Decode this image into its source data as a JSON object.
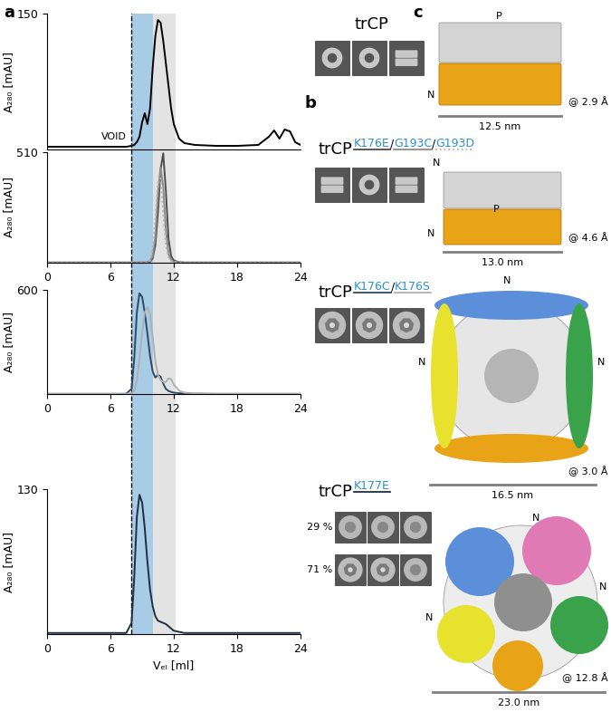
{
  "chart_data": [
    {
      "type": "line",
      "ylabel": "A₂₈₀ [mAU]",
      "xlim": [
        0,
        24
      ],
      "ylim": [
        0,
        150
      ],
      "yticks": [
        150
      ],
      "tick_labels": "y",
      "x": [
        0,
        2,
        4,
        6,
        7,
        7.5,
        8,
        8.25,
        8.5,
        8.75,
        9,
        9.25,
        9.5,
        9.75,
        10,
        10.25,
        10.5,
        10.75,
        11,
        11.25,
        11.5,
        11.75,
        12,
        12.5,
        13,
        14,
        16,
        18,
        20,
        21,
        21.5,
        22,
        22.5,
        23,
        23.5,
        24
      ],
      "series": [
        {
          "name": "trCP",
          "color": "#000000",
          "line_style": "solid",
          "values": [
            3,
            3,
            3,
            3,
            3,
            3,
            4,
            5,
            8,
            14,
            30,
            40,
            28,
            45,
            90,
            125,
            143,
            140,
            120,
            95,
            70,
            45,
            28,
            12,
            7,
            5,
            4,
            4,
            5,
            14,
            21,
            12,
            22,
            20,
            8,
            5
          ]
        }
      ]
    },
    {
      "type": "line",
      "ylabel": "A₂₈₀ [mAU]",
      "xlim": [
        0,
        24
      ],
      "ylim": [
        0,
        510
      ],
      "xticks": [
        0,
        6,
        12,
        18,
        24
      ],
      "yticks": [
        510
      ],
      "x": [
        0,
        2,
        4,
        6,
        7,
        7.5,
        8,
        8.25,
        8.5,
        8.75,
        9,
        9.25,
        9.5,
        9.75,
        10,
        10.25,
        10.5,
        10.75,
        11,
        11.25,
        11.5,
        11.75,
        12,
        12.5,
        13,
        14,
        16,
        18,
        20,
        21,
        21.5,
        22,
        22.5,
        23,
        23.5,
        24
      ],
      "series": [
        {
          "name": "K176E",
          "color": "#4d4d4d",
          "line_style": "solid",
          "values": [
            1,
            1,
            1,
            1,
            1,
            1,
            1,
            1,
            1,
            1,
            1,
            1,
            2,
            5,
            20,
            80,
            230,
            430,
            505,
            330,
            110,
            30,
            10,
            3,
            1,
            1,
            1,
            1,
            1,
            1,
            1,
            1,
            1,
            1,
            1,
            1
          ]
        },
        {
          "name": "G193C",
          "color": "#8c8c8c",
          "line_style": "solid",
          "values": [
            1,
            1,
            1,
            1,
            1,
            1,
            1,
            1,
            1,
            1,
            1,
            1,
            1,
            8,
            30,
            120,
            320,
            440,
            350,
            150,
            40,
            12,
            5,
            2,
            1,
            1,
            1,
            1,
            1,
            1,
            1,
            1,
            1,
            1,
            1,
            1
          ]
        },
        {
          "name": "G193D",
          "color": "#b3b3b3",
          "line_style": "dotted",
          "values": [
            1,
            1,
            1,
            1,
            1,
            1,
            1,
            1,
            1,
            1,
            1,
            1,
            1,
            10,
            60,
            200,
            370,
            390,
            230,
            80,
            25,
            8,
            3,
            2,
            1,
            1,
            1,
            1,
            1,
            1,
            1,
            1,
            1,
            1,
            1,
            1
          ]
        }
      ]
    },
    {
      "type": "line",
      "ylabel": "A₂₈₀ [mAU]",
      "xlim": [
        0,
        24
      ],
      "ylim": [
        0,
        600
      ],
      "xticks": [
        0,
        6,
        12,
        18,
        24
      ],
      "yticks": [
        600
      ],
      "x": [
        0,
        2,
        4,
        6,
        7,
        7.5,
        8,
        8.25,
        8.5,
        8.75,
        9,
        9.25,
        9.5,
        9.75,
        10,
        10.25,
        10.5,
        10.75,
        11,
        11.25,
        11.5,
        11.75,
        12,
        12.5,
        13,
        14,
        16,
        18,
        20,
        21,
        21.5,
        22,
        22.5,
        23,
        23.5,
        24
      ],
      "series": [
        {
          "name": "K176C",
          "color": "#2e4a62",
          "line_style": "solid",
          "values": [
            1,
            1,
            1,
            1,
            1,
            2,
            30,
            200,
            470,
            580,
            560,
            470,
            350,
            220,
            130,
            95,
            110,
            100,
            60,
            30,
            18,
            12,
            8,
            5,
            3,
            2,
            1,
            1,
            1,
            1,
            1,
            1,
            1,
            1,
            1,
            1
          ]
        },
        {
          "name": "K176S",
          "color": "#b0b0b0",
          "line_style": "solid",
          "values": [
            1,
            1,
            1,
            1,
            1,
            1,
            5,
            20,
            80,
            200,
            350,
            470,
            500,
            460,
            330,
            190,
            110,
            80,
            70,
            70,
            90,
            85,
            55,
            20,
            8,
            4,
            1,
            1,
            1,
            1,
            1,
            1,
            1,
            1,
            1,
            1
          ]
        }
      ]
    },
    {
      "type": "line",
      "ylabel": "A₂₈₀ [mAU]",
      "xlabel": "Vₑₗ [ml]",
      "xlim": [
        0,
        24
      ],
      "ylim": [
        0,
        130
      ],
      "xticks": [
        0,
        6,
        12,
        18,
        24
      ],
      "yticks": [
        130
      ],
      "x": [
        0,
        2,
        4,
        6,
        7,
        7.5,
        8,
        8.25,
        8.5,
        8.75,
        9,
        9.25,
        9.5,
        9.75,
        10,
        10.25,
        10.5,
        10.75,
        11,
        11.25,
        11.5,
        11.75,
        12,
        12.5,
        13,
        14,
        16,
        18,
        20,
        21,
        21.5,
        22,
        22.5,
        23,
        23.5,
        24
      ],
      "series": [
        {
          "name": "K177E",
          "color": "#1f2f3f",
          "line_style": "solid",
          "values": [
            1,
            1,
            1,
            1,
            1,
            1,
            10,
            50,
            105,
            125,
            118,
            95,
            65,
            40,
            25,
            16,
            12,
            11,
            10,
            9,
            7,
            5,
            3,
            2,
            1,
            1,
            1,
            1,
            1,
            1,
            1,
            1,
            1,
            1,
            1,
            1
          ]
        }
      ]
    }
  ],
  "shading": [
    {
      "range": [
        8,
        10
      ],
      "color": "#a8cbe6"
    },
    {
      "range": [
        10,
        12.2
      ],
      "color": "#e3e3e3"
    }
  ],
  "void": {
    "x": 8,
    "label": "VOID"
  },
  "panel_labels": [
    "a",
    "b",
    "c"
  ],
  "class_averages": [
    {
      "label": "trCP"
    },
    {
      "label": "trCP",
      "variants": [
        "K176E",
        "G193C",
        "G193D"
      ],
      "separator": "/"
    },
    {
      "label": "trCP",
      "variants": [
        "K176C",
        "K176S"
      ],
      "separator": "/"
    },
    {
      "label": "trCP",
      "variants": [
        "K177E"
      ],
      "groups": [
        {
          "label": "29 %"
        },
        {
          "label": "71 %"
        }
      ]
    }
  ],
  "maps": [
    {
      "resolution": "@ 2.9 Å",
      "width": "12.5 nm",
      "labels": [
        "P",
        "N"
      ]
    },
    {
      "resolution": "@ 4.6 Å",
      "width": "13.0 nm",
      "labels": [
        "N",
        "P",
        "N"
      ]
    },
    {
      "resolution": "@ 3.0 Å",
      "width": "16.5 nm",
      "labels": [
        "N",
        "N",
        "N"
      ]
    },
    {
      "resolution": "@ 12.8 Å",
      "width": "23.0 nm",
      "labels": [
        "N",
        "N",
        "N"
      ]
    }
  ]
}
